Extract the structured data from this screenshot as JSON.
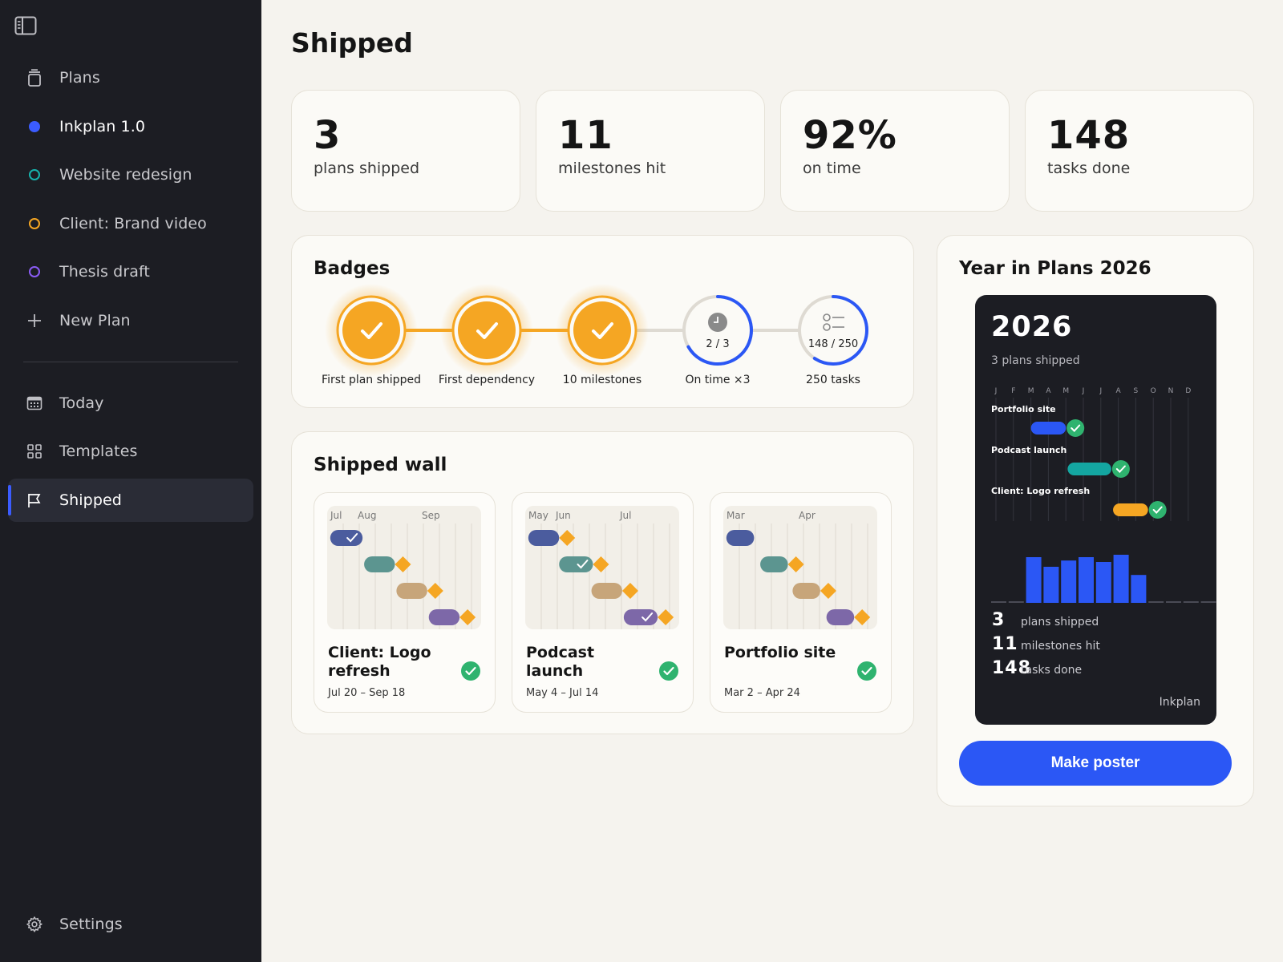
{
  "sidebar": {
    "toggle_icon": "sidebar-toggle-icon",
    "plans_label": "Plans",
    "plans": [
      {
        "label": "Inkplan 1.0",
        "color": "#3b5cff",
        "style": "filled"
      },
      {
        "label": "Website redesign",
        "color": "#17b3ad",
        "style": "ring"
      },
      {
        "label": "Client: Brand video",
        "color": "#f5a623",
        "style": "ring"
      },
      {
        "label": "Thesis draft",
        "color": "#8b5cf6",
        "style": "ring"
      }
    ],
    "new_plan_label": "New Plan",
    "today_label": "Today",
    "templates_label": "Templates",
    "shipped_label": "Shipped",
    "settings_label": "Settings"
  },
  "page": {
    "title": "Shipped"
  },
  "stats": [
    {
      "value": "3",
      "label": "plans shipped"
    },
    {
      "value": "11",
      "label": "milestones hit"
    },
    {
      "value": "92%",
      "label": "on time"
    },
    {
      "value": "148",
      "label": "tasks done"
    }
  ],
  "badges": {
    "title": "Badges",
    "items": [
      {
        "label": "First plan shipped",
        "earned": true
      },
      {
        "label": "First dependency",
        "earned": true
      },
      {
        "label": "10 milestones",
        "earned": true
      },
      {
        "label": "On time ×3",
        "earned": false,
        "progress_text": "2 / 3",
        "progress": 0.667,
        "icon": "clock-icon"
      },
      {
        "label": "250 tasks",
        "earned": false,
        "progress_text": "148 / 250",
        "progress": 0.592,
        "icon": "checklist-icon"
      }
    ],
    "colors": {
      "earned": "#f5a623",
      "progress": "#2b57f5",
      "track": "#dedad2"
    }
  },
  "wall": {
    "title": "Shipped wall",
    "items": [
      {
        "title": "Client: Logo refresh",
        "dates": "Jul 20 – Sep 18",
        "months": [
          "Jul",
          "Aug",
          "Sep"
        ],
        "bars": [
          {
            "start": 0.02,
            "end": 0.23,
            "color": "#4b5c9e",
            "check": true,
            "milestone": false
          },
          {
            "start": 0.24,
            "end": 0.44,
            "color": "#5c9590",
            "check": false,
            "milestone": true
          },
          {
            "start": 0.45,
            "end": 0.65,
            "color": "#c7a57a",
            "check": false,
            "milestone": true
          },
          {
            "start": 0.66,
            "end": 0.86,
            "color": "#7d68a8",
            "check": false,
            "milestone": true
          }
        ]
      },
      {
        "title": "Podcast launch",
        "dates": "May 4 – Jul 14",
        "months": [
          "May",
          "Jun",
          "Jul"
        ],
        "bars": [
          {
            "start": 0.02,
            "end": 0.22,
            "color": "#4b5c9e",
            "check": false,
            "milestone": true
          },
          {
            "start": 0.22,
            "end": 0.44,
            "color": "#5c9590",
            "check": true,
            "milestone": true
          },
          {
            "start": 0.43,
            "end": 0.63,
            "color": "#c7a57a",
            "check": false,
            "milestone": true
          },
          {
            "start": 0.64,
            "end": 0.86,
            "color": "#7d68a8",
            "check": true,
            "milestone": true
          }
        ]
      },
      {
        "title": "Portfolio site",
        "dates": "Mar 2 – Apr 24",
        "months": [
          "Mar",
          "Apr"
        ],
        "bars": [
          {
            "start": 0.02,
            "end": 0.2,
            "color": "#4b5c9e",
            "check": false,
            "milestone": false
          },
          {
            "start": 0.24,
            "end": 0.42,
            "color": "#5c9590",
            "check": false,
            "milestone": true
          },
          {
            "start": 0.45,
            "end": 0.63,
            "color": "#c7a57a",
            "check": false,
            "milestone": true
          },
          {
            "start": 0.67,
            "end": 0.85,
            "color": "#7d68a8",
            "check": false,
            "milestone": true
          }
        ]
      }
    ],
    "milestone_color": "#f5a623",
    "check_color": "#2fb36f"
  },
  "year": {
    "title": "Year in Plans 2026",
    "poster_year": "2026",
    "poster_subtitle": "3 plans shipped",
    "months": [
      "J",
      "F",
      "M",
      "A",
      "M",
      "J",
      "J",
      "A",
      "S",
      "O",
      "N",
      "D"
    ],
    "timeline": [
      {
        "label": "Portfolio site",
        "start": 2.0,
        "end": 4.0,
        "color": "#2b57f5"
      },
      {
        "label": "Podcast launch",
        "start": 4.1,
        "end": 6.6,
        "color": "#14a6a1"
      },
      {
        "label": "Client: Logo refresh",
        "start": 6.7,
        "end": 8.7,
        "color": "#f5a623"
      }
    ],
    "activity": [
      0,
      0,
      0.95,
      0.75,
      0.88,
      0.95,
      0.85,
      1.0,
      0.58,
      0,
      0,
      0,
      0
    ],
    "stats": [
      {
        "value": "3",
        "label": "plans shipped"
      },
      {
        "value": "11",
        "label": "milestones hit"
      },
      {
        "value": "148",
        "label": "tasks done"
      }
    ],
    "brand": "Inkplan",
    "button_label": "Make poster"
  }
}
